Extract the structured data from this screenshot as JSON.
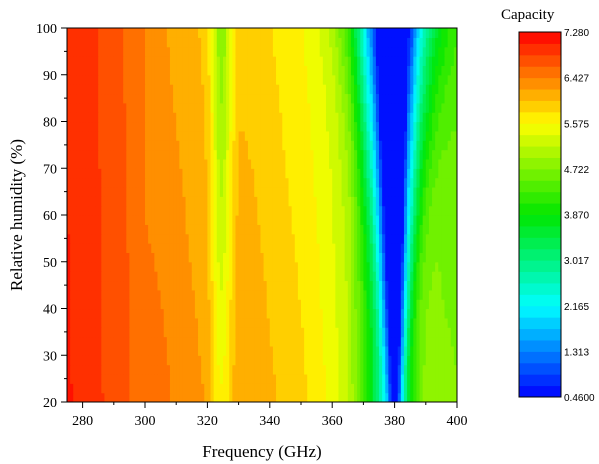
{
  "chart_data": {
    "type": "heatmap",
    "subtype": "filled-contour",
    "title": "",
    "xlabel": "Frequency (GHz)",
    "ylabel": "Relative humidity (%)",
    "xlim": [
      275,
      400
    ],
    "ylim": [
      20,
      100
    ],
    "xticks": [
      280,
      300,
      320,
      340,
      360,
      380,
      400
    ],
    "yticks": [
      20,
      30,
      40,
      50,
      60,
      70,
      80,
      90,
      100
    ],
    "colorbar": {
      "title": "Capacity",
      "min": 0.46,
      "max": 7.28,
      "tick_labels": [
        "7.280",
        "6.427",
        "5.575",
        "4.722",
        "3.870",
        "3.017",
        "2.165",
        "1.313",
        "0.4600"
      ],
      "tick_values": [
        7.28,
        6.427,
        5.575,
        4.722,
        3.87,
        3.017,
        2.165,
        1.313,
        0.46
      ],
      "colormap": "rainbow (blue-cyan-green-yellow-red)",
      "bands": 32
    },
    "x": [
      275,
      280,
      285,
      290,
      295,
      300,
      305,
      310,
      315,
      320,
      322,
      324,
      326,
      328,
      330,
      335,
      340,
      345,
      350,
      355,
      360,
      365,
      368,
      371,
      374,
      376,
      378,
      380,
      382,
      384,
      386,
      388,
      390,
      393,
      396,
      400
    ],
    "y": [
      20,
      30,
      40,
      50,
      60,
      70,
      80,
      90,
      100
    ],
    "z_profile_by_frequency": [
      7.1,
      7.0,
      6.9,
      6.75,
      6.65,
      6.55,
      6.5,
      6.4,
      6.3,
      6.2,
      6.0,
      5.9,
      5.95,
      6.05,
      6.2,
      6.15,
      6.05,
      5.95,
      5.85,
      5.7,
      5.5,
      5.2,
      4.7,
      4.1,
      3.3,
      2.6,
      1.8,
      0.8,
      2.0,
      3.4,
      4.2,
      4.6,
      4.8,
      4.85,
      4.8,
      4.75
    ],
    "z_notes": "capacity decreases toward high humidity near 325 GHz and 380 GHz absorption lines; minimum ~0.46 at 380 GHz, 100% RH"
  }
}
